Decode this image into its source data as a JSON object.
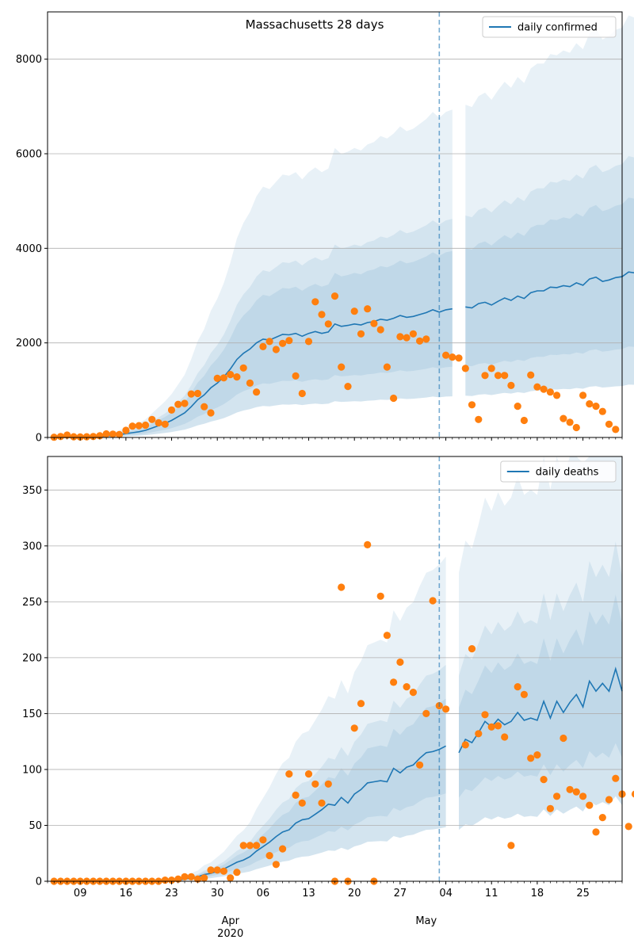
{
  "colors": {
    "line": "#1f77b4",
    "points": "#ff7f0e",
    "band": "#1f77b4",
    "grid": "#b0b0b0",
    "axis": "#000000"
  },
  "x_axis": {
    "day_ticks": [
      "09",
      "16",
      "23",
      "30",
      "06",
      "13",
      "20",
      "27",
      "04",
      "11",
      "18",
      "25"
    ],
    "month_labels": [
      {
        "text": "Apr",
        "sub": "2020"
      },
      {
        "text": "May",
        "sub": ""
      }
    ]
  },
  "chart_data": [
    {
      "type": "line",
      "title": "Massachusetts 28 days",
      "legend": {
        "label": "daily confirmed",
        "placement": "top-right"
      },
      "x_unit": "date",
      "x_range": [
        "2020-03-04",
        "2020-05-31"
      ],
      "vline_date": "2020-05-03",
      "ylim": [
        0,
        9000
      ],
      "yticks": [
        0,
        2000,
        4000,
        6000,
        8000
      ],
      "grid": "horizontal",
      "points_dates_start": "2020-03-05",
      "points": [
        5,
        20,
        50,
        15,
        10,
        15,
        20,
        35,
        75,
        70,
        60,
        150,
        240,
        250,
        260,
        380,
        310,
        280,
        580,
        700,
        720,
        920,
        930,
        650,
        520,
        1250,
        1260,
        1330,
        1280,
        1470,
        1150,
        960,
        1920,
        2030,
        1860,
        1990,
        2050,
        1300,
        930,
        2030,
        2870,
        2600,
        2400,
        2990,
        1490,
        1080,
        2670,
        2190,
        2720,
        2410,
        2280,
        1490,
        830,
        2130,
        2110,
        2190,
        2040,
        2080,
        null,
        null,
        1740,
        1700,
        1680,
        1460,
        690,
        380,
        1310,
        1460,
        1310,
        1310,
        1100,
        660,
        360,
        1320,
        1070,
        1020,
        960,
        890,
        400,
        320,
        210,
        890,
        710,
        660,
        550,
        280,
        170
      ],
      "fit_dates_start": "2020-03-06",
      "fit": [
        0,
        0,
        0,
        0,
        10,
        15,
        20,
        30,
        40,
        60,
        80,
        100,
        120,
        150,
        200,
        250,
        300,
        360,
        440,
        520,
        650,
        800,
        900,
        1050,
        1150,
        1280,
        1450,
        1650,
        1780,
        1870,
        2000,
        2080,
        2060,
        2120,
        2180,
        2170,
        2200,
        2140,
        2200,
        2240,
        2200,
        2230,
        2400,
        2350,
        2370,
        2400,
        2380,
        2430,
        2450,
        2500,
        2480,
        2520,
        2580,
        2540,
        2560,
        2600,
        2640,
        2700,
        2650,
        2700,
        2720,
        null,
        2760,
        2740,
        2830,
        2860,
        2800,
        2880,
        2950,
        2900,
        2990,
        2940,
        3060,
        3100,
        3100,
        3180,
        3170,
        3210,
        3190,
        3270,
        3220,
        3350,
        3390,
        3300,
        3330,
        3380,
        3400,
        3500,
        3480,
        3400
      ],
      "band_scale": [
        [
          0.32,
          1.7
        ],
        [
          0.55,
          1.45
        ]
      ],
      "band_outer_upper_scale": 2.55
    },
    {
      "type": "line",
      "title": "",
      "legend": {
        "label": "daily deaths",
        "placement": "top-right"
      },
      "x_unit": "date",
      "x_range": [
        "2020-03-04",
        "2020-05-31"
      ],
      "vline_date": "2020-05-03",
      "ylim": [
        0,
        380
      ],
      "yticks": [
        0,
        50,
        100,
        150,
        200,
        250,
        300,
        350
      ],
      "grid": "horizontal",
      "points_dates_start": "2020-03-05",
      "points": [
        0,
        0,
        0,
        0,
        0,
        0,
        0,
        0,
        0,
        0,
        0,
        0,
        0,
        0,
        0,
        0,
        0,
        1,
        1,
        2,
        4,
        4,
        2,
        3,
        10,
        10,
        9,
        3,
        8,
        32,
        32,
        32,
        37,
        23,
        15,
        29,
        96,
        77,
        70,
        96,
        87,
        70,
        87,
        0,
        263,
        0,
        137,
        159,
        301,
        0,
        255,
        220,
        178,
        196,
        174,
        169,
        104,
        150,
        251,
        157,
        154,
        null,
        null,
        122,
        208,
        132,
        149,
        138,
        139,
        129,
        32,
        174,
        167,
        110,
        113,
        91,
        65,
        76,
        128,
        82,
        80,
        76,
        68,
        44,
        57,
        73,
        92,
        78,
        49,
        78
      ],
      "fit_dates_start": "2020-03-06",
      "fit": [
        0,
        0,
        0,
        0,
        0,
        0,
        0,
        0,
        0,
        0,
        0,
        0,
        0,
        0,
        0,
        0,
        0,
        1,
        1,
        2,
        3,
        4,
        6,
        7,
        9,
        11,
        14,
        17,
        19,
        22,
        27,
        31,
        35,
        40,
        44,
        46,
        52,
        55,
        56,
        60,
        64,
        69,
        68,
        75,
        70,
        78,
        82,
        88,
        89,
        90,
        89,
        101,
        97,
        102,
        104,
        110,
        115,
        116,
        118,
        121,
        null,
        115,
        127,
        124,
        133,
        143,
        138,
        145,
        140,
        143,
        151,
        144,
        146,
        144,
        161,
        146,
        161,
        151,
        160,
        167,
        156,
        179,
        170,
        177,
        170,
        190,
        170
      ],
      "band_scale": [
        [
          0.4,
          1.6
        ],
        [
          0.65,
          1.35
        ]
      ],
      "band_outer_upper_scale": 2.4
    }
  ]
}
